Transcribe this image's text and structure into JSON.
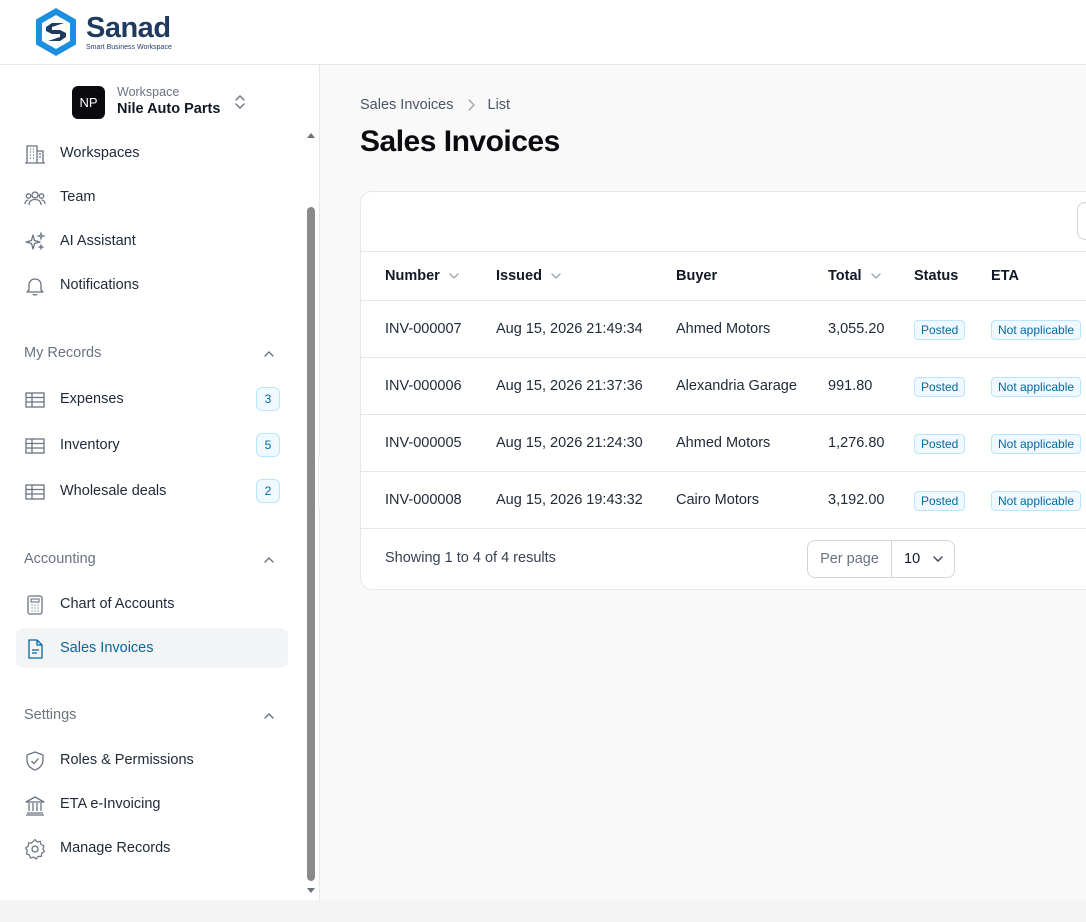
{
  "brand": {
    "name": "Sanad",
    "tagline": "Smart Business Workspace"
  },
  "workspace": {
    "initials": "NP",
    "label": "Workspace",
    "name": "Nile Auto Parts"
  },
  "nav": {
    "main": [
      {
        "label": "Workspaces",
        "icon": "building-icon"
      },
      {
        "label": "Team",
        "icon": "users-icon"
      },
      {
        "label": "AI Assistant",
        "icon": "sparkles-icon"
      },
      {
        "label": "Notifications",
        "icon": "bell-icon"
      }
    ],
    "my_records": {
      "title": "My Records",
      "items": [
        {
          "label": "Expenses",
          "count": "3",
          "icon": "table-icon"
        },
        {
          "label": "Inventory",
          "count": "5",
          "icon": "table-icon"
        },
        {
          "label": "Wholesale deals",
          "count": "2",
          "icon": "table-icon"
        }
      ]
    },
    "accounting": {
      "title": "Accounting",
      "items": [
        {
          "label": "Chart of Accounts",
          "icon": "calculator-icon"
        },
        {
          "label": "Sales Invoices",
          "icon": "document-icon",
          "active": true
        }
      ]
    },
    "settings": {
      "title": "Settings",
      "items": [
        {
          "label": "Roles & Permissions",
          "icon": "shield-check-icon"
        },
        {
          "label": "ETA e-Invoicing",
          "icon": "bank-icon"
        },
        {
          "label": "Manage Records",
          "icon": "gear-icon"
        }
      ]
    }
  },
  "breadcrumb": {
    "root": "Sales Invoices",
    "current": "List"
  },
  "page": {
    "title": "Sales Invoices"
  },
  "table": {
    "columns": {
      "number": "Number",
      "issued": "Issued",
      "buyer": "Buyer",
      "total": "Total",
      "status": "Status",
      "eta": "ETA"
    },
    "rows": [
      {
        "number": "INV-000007",
        "issued": "Aug 15, 2026 21:49:34",
        "buyer": "Ahmed Motors",
        "total": "3,055.20",
        "status": "Posted",
        "eta": "Not applicable"
      },
      {
        "number": "INV-000006",
        "issued": "Aug 15, 2026 21:37:36",
        "buyer": "Alexandria Garage",
        "total": "991.80",
        "status": "Posted",
        "eta": "Not applicable"
      },
      {
        "number": "INV-000005",
        "issued": "Aug 15, 2026 21:24:30",
        "buyer": "Ahmed Motors",
        "total": "1,276.80",
        "status": "Posted",
        "eta": "Not applicable"
      },
      {
        "number": "INV-000008",
        "issued": "Aug 15, 2026 19:43:32",
        "buyer": "Cairo Motors",
        "total": "3,192.00",
        "status": "Posted",
        "eta": "Not applicable"
      }
    ],
    "footer": {
      "summary": "Showing 1 to 4 of 4 results",
      "per_page_label": "Per page",
      "per_page_value": "10"
    }
  },
  "colors": {
    "accent": "#0369a1",
    "brand_dark": "#1e3a5f",
    "brand_blue": "#1d8fe1"
  }
}
